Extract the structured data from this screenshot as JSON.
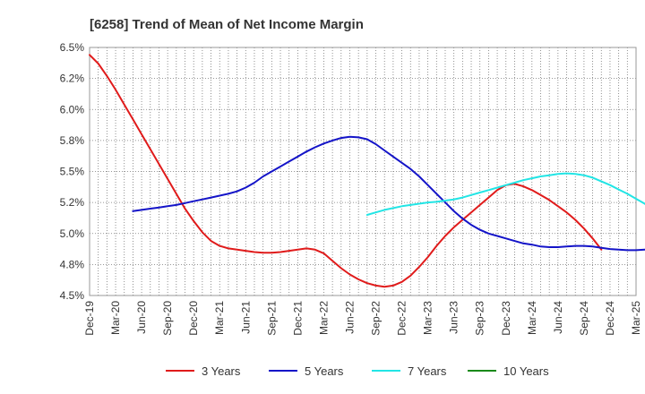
{
  "chart_data": {
    "type": "line",
    "title": "[6258]  Trend of Mean of Net Income Margin",
    "xlabel": "",
    "ylabel": "",
    "x_ticks": [
      "Dec-19",
      "Mar-20",
      "Jun-20",
      "Sep-20",
      "Dec-20",
      "Mar-21",
      "Jun-21",
      "Sep-21",
      "Dec-21",
      "Mar-22",
      "Jun-22",
      "Sep-22",
      "Dec-22",
      "Mar-23",
      "Jun-23",
      "Sep-23",
      "Dec-23",
      "Mar-24",
      "Jun-24",
      "Sep-24",
      "Dec-24",
      "Mar-25"
    ],
    "y_ticks": [
      "4.5%",
      "4.8%",
      "5.0%",
      "5.2%",
      "5.5%",
      "5.8%",
      "6.0%",
      "6.2%",
      "6.5%"
    ],
    "ylim": [
      4.5,
      6.5
    ],
    "grid": true,
    "legend_position": "bottom",
    "series": [
      {
        "name": "3 Years",
        "color": "#e01b1b",
        "start_index": 0,
        "values": [
          6.44,
          6.37,
          6.27,
          6.16,
          6.04,
          5.92,
          5.8,
          5.68,
          5.56,
          5.44,
          5.32,
          5.2,
          5.1,
          5.01,
          4.94,
          4.9,
          4.88,
          4.87,
          4.86,
          4.85,
          4.845,
          4.845,
          4.85,
          4.86,
          4.87,
          4.88,
          4.87,
          4.84,
          4.78,
          4.72,
          4.67,
          4.63,
          4.6,
          4.58,
          4.57,
          4.58,
          4.61,
          4.66,
          4.73,
          4.81,
          4.9,
          4.98,
          5.05,
          5.11,
          5.17,
          5.23,
          5.29,
          5.35,
          5.39,
          5.4,
          5.38,
          5.35,
          5.31,
          5.27,
          5.22,
          5.17,
          5.11,
          5.04,
          4.96,
          4.87
        ]
      },
      {
        "name": "5 Years",
        "color": "#1414c8",
        "start_index": 5,
        "values": [
          5.18,
          5.19,
          5.2,
          5.21,
          5.22,
          5.23,
          5.245,
          5.26,
          5.275,
          5.29,
          5.305,
          5.32,
          5.34,
          5.37,
          5.41,
          5.46,
          5.5,
          5.54,
          5.58,
          5.62,
          5.66,
          5.695,
          5.725,
          5.75,
          5.77,
          5.78,
          5.775,
          5.76,
          5.72,
          5.67,
          5.62,
          5.57,
          5.52,
          5.46,
          5.39,
          5.32,
          5.25,
          5.18,
          5.12,
          5.07,
          5.03,
          5.0,
          4.98,
          4.96,
          4.94,
          4.92,
          4.91,
          4.895,
          4.89,
          4.89,
          4.895,
          4.9,
          4.9,
          4.895,
          4.885,
          4.875,
          4.87,
          4.865,
          4.865,
          4.87,
          4.875,
          4.88,
          4.88
        ]
      },
      {
        "name": "7 Years",
        "color": "#22e5e5",
        "start_index": 32,
        "values": [
          5.15,
          5.17,
          5.19,
          5.205,
          5.22,
          5.23,
          5.24,
          5.25,
          5.255,
          5.265,
          5.275,
          5.29,
          5.31,
          5.33,
          5.35,
          5.37,
          5.39,
          5.41,
          5.43,
          5.445,
          5.46,
          5.47,
          5.48,
          5.485,
          5.48,
          5.47,
          5.45,
          5.42,
          5.39,
          5.355,
          5.32,
          5.28,
          5.24,
          5.19,
          5.14
        ]
      },
      {
        "name": "10 Years",
        "color": "#1a8a1a",
        "start_index": 0,
        "values": []
      }
    ]
  }
}
